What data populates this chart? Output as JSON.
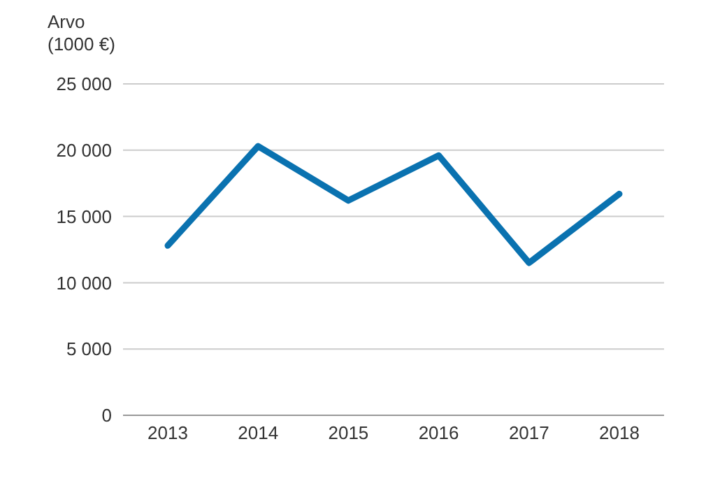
{
  "chart_data": {
    "type": "line",
    "ylabel": "Arvo\n(1000 €)",
    "categories": [
      "2013",
      "2014",
      "2015",
      "2016",
      "2017",
      "2018"
    ],
    "series": [
      {
        "color": "#0a72b0",
        "values": [
          12800,
          20300,
          16200,
          19600,
          11500,
          16700
        ]
      }
    ],
    "ylim": [
      0,
      25000
    ],
    "yticks": [
      {
        "value": 0,
        "label": "0"
      },
      {
        "value": 5000,
        "label": "5 000"
      },
      {
        "value": 10000,
        "label": "10 000"
      },
      {
        "value": 15000,
        "label": "15 000"
      },
      {
        "value": 20000,
        "label": "20 000"
      },
      {
        "value": 25000,
        "label": "25 000"
      }
    ],
    "grid": "y",
    "legend": false,
    "marker": "none",
    "line_style": "solid"
  }
}
